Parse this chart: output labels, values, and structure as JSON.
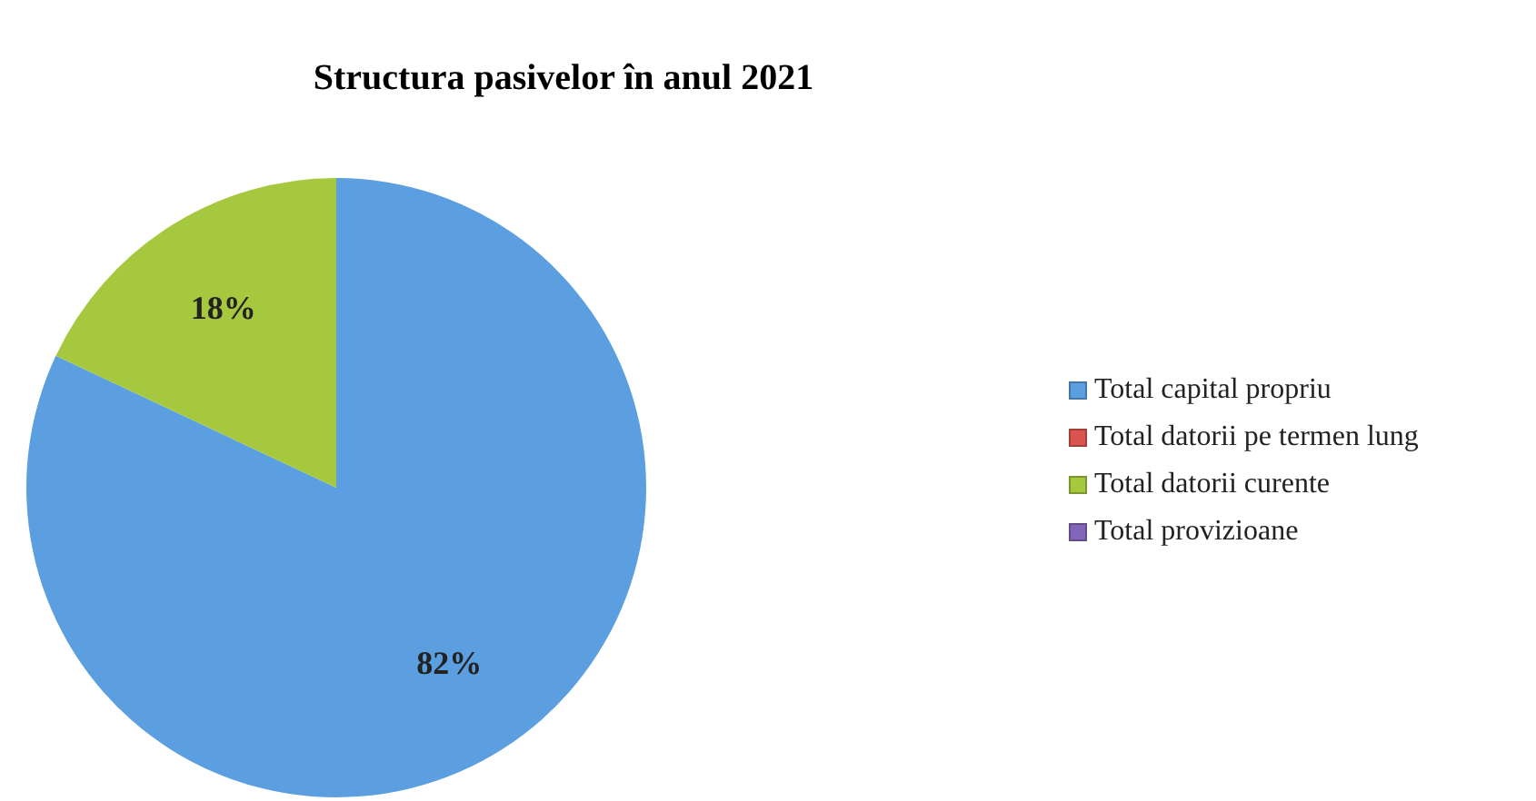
{
  "chart_data": {
    "type": "pie",
    "title": "Structura pasivelor în anul 2021",
    "categories": [
      "Total capital propriu",
      "Total datorii pe termen lung",
      "Total datorii curente",
      "Total provizioane"
    ],
    "values": [
      82,
      0,
      18,
      0
    ],
    "colors": [
      "#5b9fe0",
      "#d9534f",
      "#a6c83f",
      "#8466b8"
    ],
    "value_labels": [
      "82%",
      null,
      "18%",
      null
    ],
    "legend": "right"
  }
}
